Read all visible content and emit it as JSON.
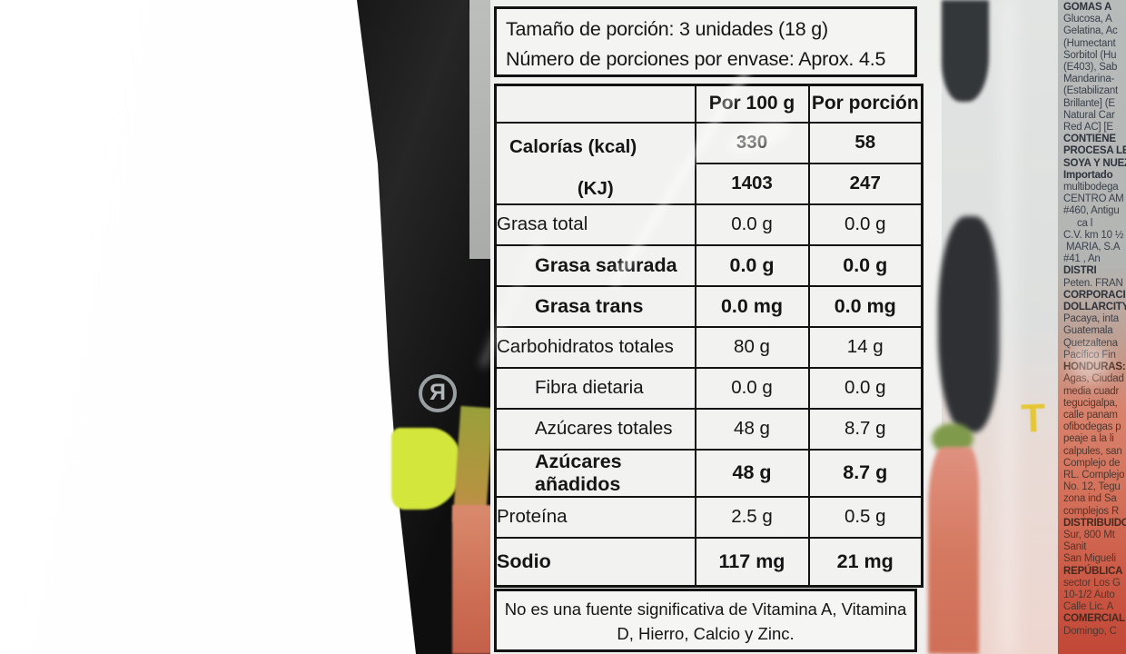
{
  "product_label": {
    "serving": {
      "line1": "Tamaño de porción: 3 unidades (18 g)",
      "line2": "Número de porciones por envase: Aprox. 4.5"
    },
    "table": {
      "col_headers": [
        "Por 100 g",
        "Por porción"
      ],
      "calories": {
        "label_kcal": "Calorías (kcal)",
        "label_kj": "(KJ)",
        "kcal_per100": "330",
        "kcal_porcion": "58",
        "kj_per100": "1403",
        "kj_porcion": "247"
      },
      "rows": [
        {
          "label": "Grasa total",
          "per100": "0.0 g",
          "porcion": "0.0 g",
          "cls": ""
        },
        {
          "label": "Grasa saturada",
          "per100": "0.0 g",
          "porcion": "0.0 g",
          "cls": "bold indent"
        },
        {
          "label": "Grasa trans",
          "per100": "0.0 mg",
          "porcion": "0.0 mg",
          "cls": "bold indent"
        },
        {
          "label": "Carbohidratos totales",
          "per100": "80 g",
          "porcion": "14 g",
          "cls": ""
        },
        {
          "label": "Fibra dietaria",
          "per100": "0.0 g",
          "porcion": "0.0 g",
          "cls": "indent"
        },
        {
          "label": "Azúcares totales",
          "per100": "48 g",
          "porcion": "8.7 g",
          "cls": "indent"
        },
        {
          "label": "Azúcares añadidos",
          "per100": "48 g",
          "porcion": "8.7 g",
          "cls": "bold indent"
        },
        {
          "label": "Proteína",
          "per100": "2.5 g",
          "porcion": "0.5 g",
          "cls": ""
        },
        {
          "label": "Sodio",
          "per100": "117 mg",
          "porcion": "21 mg",
          "cls": "bold tall"
        }
      ]
    },
    "note": "No es una fuente significativa de Vitamina A, Vitamina D, Hierro, Calcio y Zinc."
  },
  "bag": {
    "registered_mark": "R",
    "logo_letter": "T"
  },
  "side_text": {
    "lines": [
      {
        "t": "GOMAS A",
        "c": "b"
      },
      {
        "t": "Glucosa, A",
        "c": ""
      },
      {
        "t": "Gelatina, Ac",
        "c": ""
      },
      {
        "t": "(Humectant",
        "c": ""
      },
      {
        "t": "Sorbitol (Hu",
        "c": ""
      },
      {
        "t": "(E403), Sab",
        "c": ""
      },
      {
        "t": "Mandarina-",
        "c": ""
      },
      {
        "t": "(Estabilizant",
        "c": ""
      },
      {
        "t": "Brillante] (E",
        "c": ""
      },
      {
        "t": "Natural Car",
        "c": ""
      },
      {
        "t": "Red AC] [E",
        "c": ""
      },
      {
        "t": "CONTIENE",
        "c": "b"
      },
      {
        "t": "PROCESA LE",
        "c": "b"
      },
      {
        "t": "SOYA Y NUEZ",
        "c": "b"
      },
      {
        "t": "",
        "c": ""
      },
      {
        "t": "Importado",
        "c": "b"
      },
      {
        "t": "multibodega",
        "c": ""
      },
      {
        "t": "CENTRO AM",
        "c": ""
      },
      {
        "t": "#460, Antigu",
        "c": ""
      },
      {
        "t": "     ca l",
        "c": ""
      },
      {
        "t": "C.V. km 10 ½",
        "c": ""
      },
      {
        "t": " MARIA, S.A",
        "c": ""
      },
      {
        "t": "#41 , An",
        "c": ""
      },
      {
        "t": "DISTRI",
        "c": "b"
      },
      {
        "t": "Peten. FRAN",
        "c": ""
      },
      {
        "t": "CORPORACI",
        "c": "b"
      },
      {
        "t": "DOLLARCITY",
        "c": "b"
      },
      {
        "t": "Pacaya, inta",
        "c": ""
      },
      {
        "t": "Guatemala",
        "c": ""
      },
      {
        "t": "Quetzaltena",
        "c": ""
      },
      {
        "t": "Pacífico Fin",
        "c": ""
      },
      {
        "t": "HONDURAS:",
        "c": "b warm"
      },
      {
        "t": "Agas, Ciudad",
        "c": "warm"
      },
      {
        "t": "media cuadr",
        "c": "warm"
      },
      {
        "t": "tegucigalpa,",
        "c": "warm"
      },
      {
        "t": "calle panam",
        "c": "warm"
      },
      {
        "t": "ofibodegas p",
        "c": "warm"
      },
      {
        "t": "peaje a la li",
        "c": "warm"
      },
      {
        "t": "calpules, san",
        "c": "warm"
      },
      {
        "t": "Complejo de",
        "c": "warm"
      },
      {
        "t": "RL. Complejo",
        "c": "warm"
      },
      {
        "t": "No. 12, Tegu",
        "c": "warm"
      },
      {
        "t": "zona ind Sa",
        "c": "warm"
      },
      {
        "t": "complejos R",
        "c": "warm"
      },
      {
        "t": "DISTRIBUIDO",
        "c": "b warm"
      },
      {
        "t": "Sur, 800 Mt",
        "c": "warm"
      },
      {
        "t": "Sanit",
        "c": "warm"
      },
      {
        "t": "San Migueli",
        "c": "warm"
      },
      {
        "t": "REPÚBLICA",
        "c": "b warm"
      },
      {
        "t": "sector Los G",
        "c": "warm"
      },
      {
        "t": "10-1/2 Auto",
        "c": "warm"
      },
      {
        "t": "Calle Lic. A",
        "c": "warm"
      },
      {
        "t": "COMERCIAL",
        "c": "b warm"
      },
      {
        "t": "Domingo, C",
        "c": "warm"
      }
    ]
  },
  "colors": {
    "bag_black": "#141414",
    "lime_accent": "#d3e63c",
    "label_background": "#f2f2f0",
    "salmon_gummies": "#d8826c",
    "plastic_gray": "#c3c6c5",
    "logo_yellow": "#e5c634"
  }
}
